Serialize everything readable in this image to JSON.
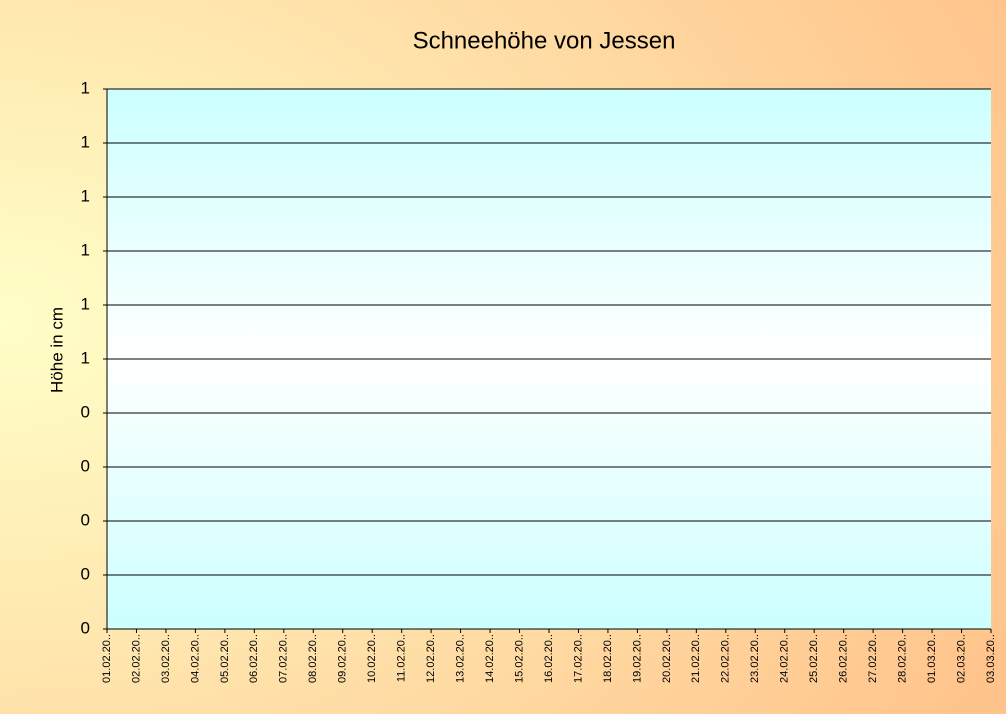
{
  "chart_data": {
    "type": "line",
    "title": "Schneehöhe von Jessen",
    "y_label": "Höhe in cm",
    "categories": [
      "01.02.20..",
      "02.02.20..",
      "03.02.20..",
      "04.02.20..",
      "05.02.20..",
      "06.02.20..",
      "07.02.20..",
      "08.02.20..",
      "09.02.20..",
      "10.02.20..",
      "11.02.20..",
      "12.02.20..",
      "13.02.20..",
      "14.02.20..",
      "15.02.20..",
      "16.02.20..",
      "17.02.20..",
      "18.02.20..",
      "19.02.20..",
      "20.02.20..",
      "21.02.20..",
      "22.02.20..",
      "23.02.20..",
      "24.02.20..",
      "25.02.20..",
      "26.02.20..",
      "27.02.20..",
      "28.02.20..",
      "01.03.20..",
      "02.03.20..",
      "03.03.20.."
    ],
    "ylim": [
      0,
      1
    ],
    "yticks": [
      0,
      {
        "value": 0.1,
        "label": "0"
      },
      {
        "value": 0.2,
        "label": "0"
      },
      {
        "value": 0.3,
        "label": "0"
      },
      {
        "value": 0.4,
        "label": "0"
      },
      {
        "value": 0.5,
        "label": "1"
      },
      {
        "value": 0.6,
        "label": "1"
      },
      {
        "value": 0.7,
        "label": "1"
      },
      {
        "value": 0.8,
        "label": "1"
      },
      {
        "value": 0.9,
        "label": "1"
      },
      1
    ],
    "grid": true
  }
}
